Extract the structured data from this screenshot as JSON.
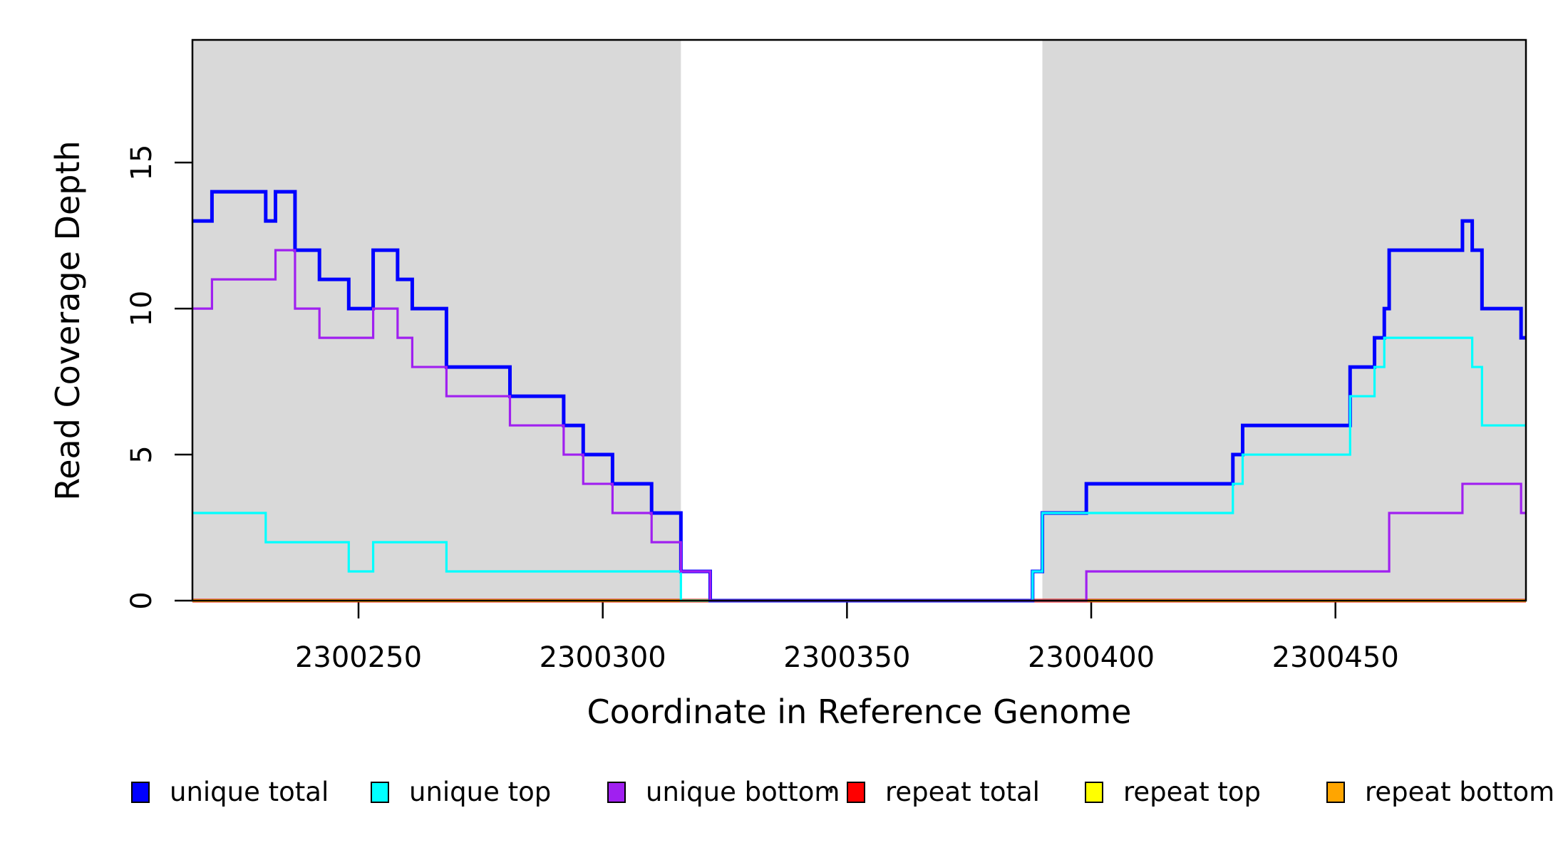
{
  "chart_data": {
    "type": "line",
    "subtype": "step-coverage",
    "title": "",
    "xlabel": "Coordinate in Reference Genome",
    "ylabel": "Read Coverage Depth",
    "xlim": [
      2300216,
      2300489
    ],
    "ylim": [
      0,
      19.2
    ],
    "grid": false,
    "legend_position": "bottom",
    "x_ticks": [
      2300250,
      2300300,
      2300350,
      2300400,
      2300450
    ],
    "x_tick_labels": [
      "2300250",
      "2300300",
      "2300350",
      "2300400",
      "2300450"
    ],
    "y_ticks": [
      0,
      5,
      10,
      15
    ],
    "y_tick_labels": [
      "0",
      "5",
      "10",
      "15"
    ],
    "shaded_regions": [
      {
        "from": 2300216,
        "to": 2300316,
        "color": "#D9D9D9"
      },
      {
        "from": 2300390,
        "to": 2300489,
        "color": "#D9D9D9"
      }
    ],
    "series": [
      {
        "name": "repeat total",
        "color": "#FF0000",
        "width": 5,
        "steps": [
          [
            2300216,
            0
          ]
        ]
      },
      {
        "name": "repeat top",
        "color": "#FFFF00",
        "width": 4,
        "steps": [
          [
            2300216,
            0
          ]
        ]
      },
      {
        "name": "repeat bottom",
        "color": "#FFA500",
        "width": 4,
        "steps": [
          [
            2300216,
            0
          ]
        ]
      },
      {
        "name": "unique total",
        "color": "#0000FF",
        "width": 5,
        "steps": [
          [
            2300216,
            13
          ],
          [
            2300220,
            14
          ],
          [
            2300231,
            13
          ],
          [
            2300233,
            14
          ],
          [
            2300237,
            12
          ],
          [
            2300242,
            11
          ],
          [
            2300248,
            10
          ],
          [
            2300253,
            12
          ],
          [
            2300258,
            11
          ],
          [
            2300261,
            10
          ],
          [
            2300268,
            8
          ],
          [
            2300281,
            7
          ],
          [
            2300292,
            6
          ],
          [
            2300296,
            5
          ],
          [
            2300302,
            4
          ],
          [
            2300310,
            3
          ],
          [
            2300316,
            1
          ],
          [
            2300322,
            0
          ],
          [
            2300388,
            1
          ],
          [
            2300390,
            3
          ],
          [
            2300399,
            4
          ],
          [
            2300429,
            5
          ],
          [
            2300431,
            6
          ],
          [
            2300453,
            8
          ],
          [
            2300458,
            9
          ],
          [
            2300460,
            10
          ],
          [
            2300461,
            12
          ],
          [
            2300476,
            13
          ],
          [
            2300478,
            12
          ],
          [
            2300480,
            10
          ],
          [
            2300488,
            9
          ]
        ]
      },
      {
        "name": "unique top",
        "color": "#00FFFF",
        "width": 3.2,
        "steps": [
          [
            2300216,
            3
          ],
          [
            2300231,
            2
          ],
          [
            2300248,
            1
          ],
          [
            2300253,
            2
          ],
          [
            2300268,
            1
          ],
          [
            2300316,
            0
          ],
          [
            2300388,
            1
          ],
          [
            2300390,
            3
          ],
          [
            2300429,
            4
          ],
          [
            2300431,
            5
          ],
          [
            2300453,
            7
          ],
          [
            2300458,
            8
          ],
          [
            2300460,
            9
          ],
          [
            2300478,
            8
          ],
          [
            2300480,
            6
          ]
        ]
      },
      {
        "name": "unique bottom",
        "color": "#A020F0",
        "width": 3.2,
        "steps": [
          [
            2300216,
            10
          ],
          [
            2300220,
            11
          ],
          [
            2300233,
            12
          ],
          [
            2300237,
            10
          ],
          [
            2300242,
            9
          ],
          [
            2300253,
            10
          ],
          [
            2300258,
            9
          ],
          [
            2300261,
            8
          ],
          [
            2300268,
            7
          ],
          [
            2300281,
            6
          ],
          [
            2300292,
            5
          ],
          [
            2300296,
            4
          ],
          [
            2300302,
            3
          ],
          [
            2300310,
            2
          ],
          [
            2300316,
            1
          ],
          [
            2300322,
            0
          ],
          [
            2300399,
            1
          ],
          [
            2300461,
            3
          ],
          [
            2300476,
            4
          ],
          [
            2300488,
            3
          ]
        ]
      }
    ],
    "legend": [
      {
        "label": "unique total",
        "color": "#0000FF"
      },
      {
        "label": "unique top",
        "color": "#00FFFF"
      },
      {
        "label": "unique bottom",
        "color": "#A020F0"
      },
      {
        "label": "repeat total",
        "color": "#FF0000"
      },
      {
        "label": "repeat top",
        "color": "#FFFF00"
      },
      {
        "label": "repeat bottom",
        "color": "#FFA500"
      }
    ]
  }
}
